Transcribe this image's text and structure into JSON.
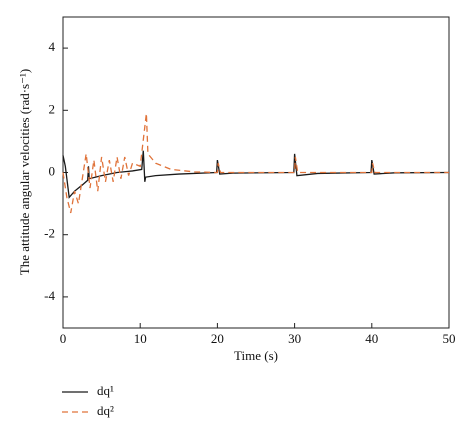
{
  "chart_data": {
    "type": "line",
    "x_label": "Time (s)",
    "y_label": "The attitude angular velocities (rad·s⁻¹)",
    "xlim": [
      0,
      50
    ],
    "xticks": [
      0,
      10,
      20,
      30,
      40,
      50
    ],
    "ylim": [
      -5,
      5
    ],
    "yticks": [
      -4,
      -2,
      0,
      2,
      4
    ],
    "legend": "bottom-left-outside",
    "series": [
      {
        "name": "dq¹",
        "color": "#1a1a1a",
        "dash": "none",
        "x": [
          0,
          0.3,
          0.8,
          1.5,
          2.5,
          3.2,
          3.3,
          3.4,
          5,
          7,
          9,
          10.2,
          10.4,
          10.6,
          10.7,
          12,
          15,
          19.9,
          20,
          20.3,
          22,
          29.9,
          30,
          30.3,
          33,
          39.9,
          40,
          40.3,
          43,
          50
        ],
        "values": [
          0.55,
          0.2,
          -0.8,
          -0.6,
          -0.4,
          -0.25,
          0.2,
          -0.2,
          -0.1,
          0,
          0.05,
          0.1,
          0.7,
          -0.3,
          -0.15,
          -0.1,
          -0.05,
          0,
          0.4,
          -0.05,
          -0.02,
          0,
          0.6,
          -0.1,
          -0.03,
          0,
          0.4,
          -0.05,
          -0.01,
          0
        ]
      },
      {
        "name": "dq²",
        "color": "#e0733a",
        "dash": "6,4",
        "x": [
          0,
          0.5,
          1,
          1.5,
          2,
          2.5,
          3,
          3.5,
          4,
          4.5,
          5,
          5.5,
          6,
          6.5,
          7,
          7.5,
          8,
          8.5,
          9,
          10,
          10.8,
          11,
          12,
          14,
          17,
          20,
          20.1,
          20.4,
          30,
          30.1,
          30.4,
          40,
          40.1,
          40.4,
          50
        ],
        "values": [
          0,
          -0.8,
          -1.3,
          -0.6,
          -1.0,
          -0.2,
          0.6,
          -0.5,
          0.4,
          -0.6,
          0.5,
          -0.3,
          0.4,
          -0.3,
          0.5,
          -0.2,
          0.5,
          -0.1,
          0.3,
          0.2,
          1.9,
          0.6,
          0.3,
          0.1,
          0.02,
          0,
          0.3,
          0,
          0,
          0.5,
          0,
          0,
          0.3,
          0,
          0
        ]
      }
    ]
  }
}
